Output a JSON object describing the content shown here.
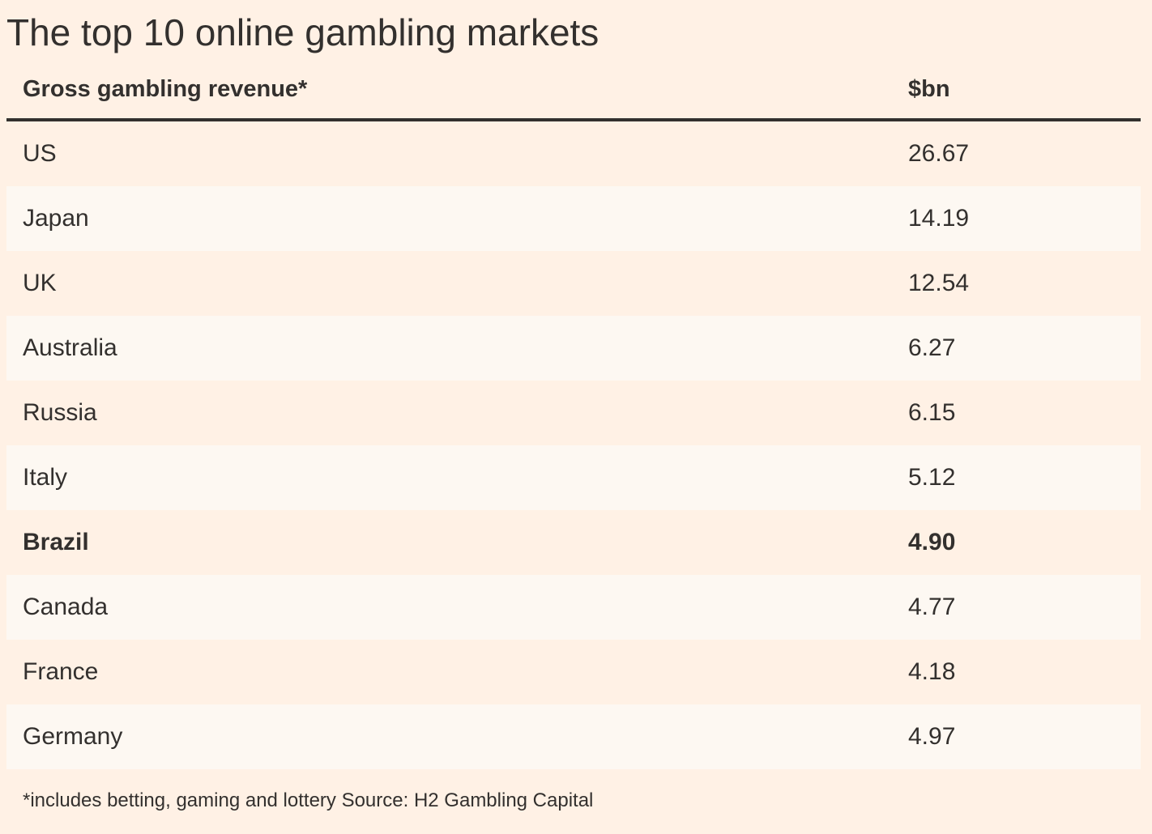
{
  "title": "The top 10 online gambling markets",
  "colors": {
    "background": "#fff1e5",
    "alt_row": "#fdf8f2",
    "text": "#33302e"
  },
  "chart_data": {
    "type": "table",
    "title": "The top 10 online gambling markets",
    "columns": [
      "Gross gambling revenue*",
      "$bn"
    ],
    "rows": [
      {
        "label": "US",
        "value": "26.67",
        "highlight": false
      },
      {
        "label": "Japan",
        "value": "14.19",
        "highlight": false
      },
      {
        "label": "UK",
        "value": "12.54",
        "highlight": false
      },
      {
        "label": "Australia",
        "value": "6.27",
        "highlight": false
      },
      {
        "label": "Russia",
        "value": "6.15",
        "highlight": false
      },
      {
        "label": "Italy",
        "value": "5.12",
        "highlight": false
      },
      {
        "label": "Brazil",
        "value": "4.90",
        "highlight": true
      },
      {
        "label": "Canada",
        "value": "4.77",
        "highlight": false
      },
      {
        "label": "France",
        "value": "4.18",
        "highlight": false
      },
      {
        "label": "Germany",
        "value": "4.97",
        "highlight": false
      }
    ],
    "footnote": "*includes betting, gaming and lottery Source: H2 Gambling Capital"
  }
}
